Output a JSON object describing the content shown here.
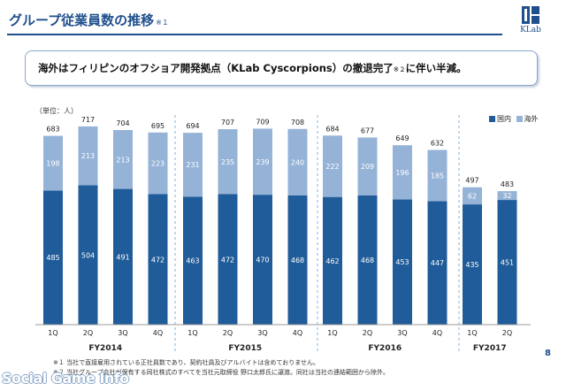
{
  "header": {
    "title": "グループ従業員数の推移",
    "title_note": "※１",
    "logo_text": "KLab"
  },
  "callout": {
    "text_before": "海外はフィリピンのオフショア開発拠点（KLab Cyscorpions）の撤退完了",
    "note": "※２",
    "text_after": "に伴い半減。"
  },
  "unit_label": "（単位：人）",
  "colors": {
    "domestic": "#1f5c99",
    "overseas": "#95b3d7",
    "divider": "#8ab0d8"
  },
  "chart_data": {
    "type": "bar",
    "stacked": true,
    "categories": [
      "1Q",
      "2Q",
      "3Q",
      "4Q",
      "1Q",
      "2Q",
      "3Q",
      "4Q",
      "1Q",
      "2Q",
      "3Q",
      "4Q",
      "1Q",
      "2Q"
    ],
    "groups": [
      {
        "label": "FY2014",
        "count": 4
      },
      {
        "label": "FY2015",
        "count": 4
      },
      {
        "label": "FY2016",
        "count": 4
      },
      {
        "label": "FY2017",
        "count": 2
      }
    ],
    "series": [
      {
        "name": "国内",
        "values": [
          485,
          504,
          491,
          472,
          463,
          472,
          470,
          468,
          462,
          468,
          453,
          447,
          435,
          451
        ]
      },
      {
        "name": "海外",
        "values": [
          198,
          213,
          213,
          223,
          231,
          235,
          239,
          240,
          222,
          209,
          196,
          185,
          62,
          32
        ]
      }
    ],
    "totals": [
      683,
      717,
      704,
      695,
      694,
      707,
      709,
      708,
      684,
      677,
      649,
      632,
      497,
      483
    ],
    "ylim": [
      0,
      800
    ],
    "grid": false,
    "legend_position": "top-right"
  },
  "footnotes": [
    "※１ 当社で直接雇用されている正社員数であり、契約社員及びアルバイトは含めておりません。",
    "※２ 当社グループ会社が保有する同社株式のすべてを当社元取締役 野口太郎氏に譲渡。同社は当社の連結範囲から除外。"
  ],
  "page_number": "8",
  "watermark": "Social Game Info"
}
